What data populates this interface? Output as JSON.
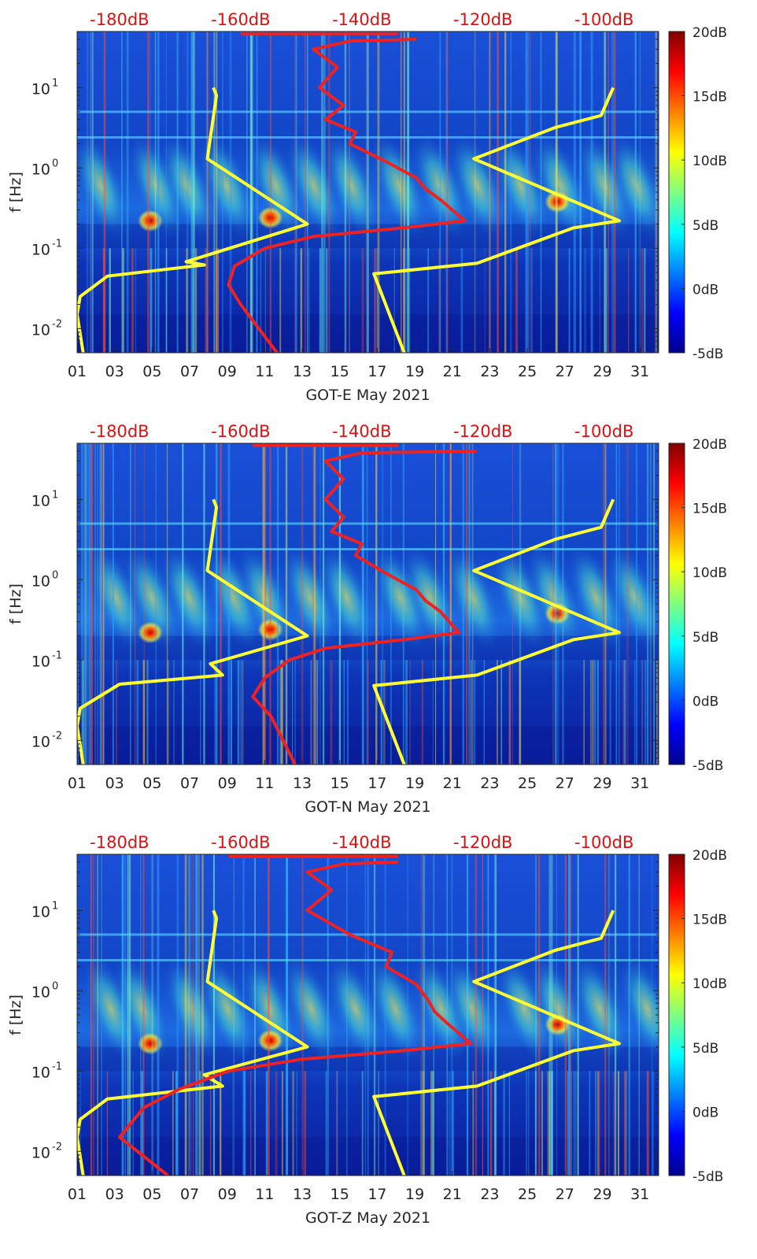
{
  "chart_data": [
    {
      "type": "heatmap",
      "title": "",
      "xlabel": "GOT-E May 2021",
      "ylabel": "f [Hz]",
      "x_ticks": [
        "01",
        "03",
        "05",
        "07",
        "09",
        "11",
        "13",
        "15",
        "17",
        "19",
        "21",
        "23",
        "25",
        "27",
        "29",
        "31"
      ],
      "x_range_days": [
        1,
        32
      ],
      "y_scale": "log",
      "y_ticks": [
        {
          "value": 0.01,
          "base": "10",
          "exp": "-2"
        },
        {
          "value": 0.1,
          "base": "10",
          "exp": "-1"
        },
        {
          "value": 1,
          "base": "10",
          "exp": "0"
        },
        {
          "value": 10,
          "base": "10",
          "exp": "1"
        }
      ],
      "y_range_hz": [
        0.005,
        50
      ],
      "top_axis_ticks": [
        "-180dB",
        "-160dB",
        "-140dB",
        "-120dB",
        "-100dB"
      ],
      "top_axis_range_db": [
        -187,
        -91
      ],
      "colorbar": {
        "ticks": [
          "20dB",
          "15dB",
          "10dB",
          "5dB",
          "0dB",
          "-5dB"
        ],
        "range_db": [
          -5,
          20
        ]
      },
      "series": [
        {
          "color": "#ffff33",
          "points": [
            [
              -164.5,
              10
            ],
            [
              -164,
              8
            ],
            [
              -165.5,
              1.3
            ],
            [
              -149,
              0.2
            ],
            [
              -169,
              0.068
            ],
            [
              -166,
              0.062
            ],
            [
              -182,
              0.045
            ],
            [
              -186.5,
              0.025
            ],
            [
              -187,
              0.015
            ],
            [
              -186,
              0.005
            ]
          ]
        },
        {
          "color": "#ffff33",
          "points": [
            [
              -98.5,
              10
            ],
            [
              -100.5,
              4.5
            ],
            [
              -108,
              3.2
            ],
            [
              -121.5,
              1.3
            ],
            [
              -97.5,
              0.22
            ],
            [
              -105,
              0.18
            ],
            [
              -121,
              0.065
            ],
            [
              -138,
              0.048
            ],
            [
              -133,
              0.005
            ]
          ]
        },
        {
          "color": "#ee2222",
          "points": [
            [
              -131,
              40
            ],
            [
              -142,
              38
            ],
            [
              -148,
              30
            ],
            [
              -144,
              18
            ],
            [
              -147,
              10
            ],
            [
              -143,
              6
            ],
            [
              -146,
              4
            ],
            [
              -141,
              2.8
            ],
            [
              -142,
              2.0
            ],
            [
              -136,
              1.2
            ],
            [
              -131,
              0.75
            ],
            [
              -129.5,
              0.55
            ],
            [
              -127,
              0.4
            ],
            [
              -123,
              0.22
            ],
            [
              -133,
              0.18
            ],
            [
              -148,
              0.14
            ],
            [
              -156,
              0.1
            ],
            [
              -161,
              0.06
            ],
            [
              -162,
              0.035
            ],
            [
              -160,
              0.02
            ],
            [
              -154,
              0.005
            ]
          ]
        },
        {
          "color": "#ee2222",
          "points": [
            [
              -134,
              47
            ],
            [
              -160,
              47
            ]
          ]
        }
      ]
    },
    {
      "type": "heatmap",
      "title": "",
      "xlabel": "GOT-N May 2021",
      "ylabel": "f [Hz]",
      "x_ticks": [
        "01",
        "03",
        "05",
        "07",
        "09",
        "11",
        "13",
        "15",
        "17",
        "19",
        "21",
        "23",
        "25",
        "27",
        "29",
        "31"
      ],
      "x_range_days": [
        1,
        32
      ],
      "y_scale": "log",
      "y_ticks": [
        {
          "value": 0.01,
          "base": "10",
          "exp": "-2"
        },
        {
          "value": 0.1,
          "base": "10",
          "exp": "-1"
        },
        {
          "value": 1,
          "base": "10",
          "exp": "0"
        },
        {
          "value": 10,
          "base": "10",
          "exp": "1"
        }
      ],
      "y_range_hz": [
        0.005,
        50
      ],
      "top_axis_ticks": [
        "-180dB",
        "-160dB",
        "-140dB",
        "-120dB",
        "-100dB"
      ],
      "top_axis_range_db": [
        -187,
        -91
      ],
      "colorbar": {
        "ticks": [
          "20dB",
          "15dB",
          "10dB",
          "5dB",
          "0dB",
          "-5dB"
        ],
        "range_db": [
          -5,
          20
        ]
      },
      "series": [
        {
          "color": "#ffff33",
          "points": [
            [
              -164.5,
              10
            ],
            [
              -164,
              8
            ],
            [
              -165.5,
              1.3
            ],
            [
              -149,
              0.2
            ],
            [
              -165,
              0.09
            ],
            [
              -163,
              0.065
            ],
            [
              -180,
              0.05
            ],
            [
              -186.5,
              0.025
            ],
            [
              -187,
              0.015
            ],
            [
              -186,
              0.005
            ]
          ]
        },
        {
          "color": "#ffff33",
          "points": [
            [
              -98.5,
              10
            ],
            [
              -100.5,
              4.5
            ],
            [
              -108,
              3.2
            ],
            [
              -121.5,
              1.3
            ],
            [
              -97.5,
              0.22
            ],
            [
              -105,
              0.18
            ],
            [
              -121,
              0.065
            ],
            [
              -138,
              0.048
            ],
            [
              -133,
              0.005
            ]
          ]
        },
        {
          "color": "#ee2222",
          "points": [
            [
              -121,
              40
            ],
            [
              -140,
              38
            ],
            [
              -146,
              30
            ],
            [
              -143,
              18
            ],
            [
              -146,
              10
            ],
            [
              -143,
              6
            ],
            [
              -145,
              4
            ],
            [
              -140,
              2.8
            ],
            [
              -141,
              2.0
            ],
            [
              -136,
              1.2
            ],
            [
              -131,
              0.75
            ],
            [
              -129.5,
              0.55
            ],
            [
              -127,
              0.4
            ],
            [
              -124,
              0.22
            ],
            [
              -133,
              0.18
            ],
            [
              -146,
              0.14
            ],
            [
              -152,
              0.1
            ],
            [
              -156,
              0.06
            ],
            [
              -158,
              0.035
            ],
            [
              -155,
              0.02
            ],
            [
              -151,
              0.005
            ]
          ]
        },
        {
          "color": "#ee2222",
          "points": [
            [
              -134,
              47
            ],
            [
              -158,
              47
            ]
          ]
        }
      ]
    },
    {
      "type": "heatmap",
      "title": "",
      "xlabel": "GOT-Z May 2021",
      "ylabel": "f [Hz]",
      "x_ticks": [
        "01",
        "03",
        "05",
        "07",
        "09",
        "11",
        "13",
        "15",
        "17",
        "19",
        "21",
        "23",
        "25",
        "27",
        "29",
        "31"
      ],
      "x_range_days": [
        1,
        32
      ],
      "y_scale": "log",
      "y_ticks": [
        {
          "value": 0.01,
          "base": "10",
          "exp": "-2"
        },
        {
          "value": 0.1,
          "base": "10",
          "exp": "-1"
        },
        {
          "value": 1,
          "base": "10",
          "exp": "0"
        },
        {
          "value": 10,
          "base": "10",
          "exp": "1"
        }
      ],
      "y_range_hz": [
        0.005,
        50
      ],
      "top_axis_ticks": [
        "-180dB",
        "-160dB",
        "-140dB",
        "-120dB",
        "-100dB"
      ],
      "top_axis_range_db": [
        -187,
        -91
      ],
      "colorbar": {
        "ticks": [
          "20dB",
          "15dB",
          "10dB",
          "5dB",
          "0dB",
          "-5dB"
        ],
        "range_db": [
          -5,
          20
        ]
      },
      "series": [
        {
          "color": "#ffff33",
          "points": [
            [
              -164.5,
              10
            ],
            [
              -164,
              8
            ],
            [
              -165.5,
              1.3
            ],
            [
              -149,
              0.2
            ],
            [
              -166,
              0.09
            ],
            [
              -163,
              0.065
            ],
            [
              -182,
              0.045
            ],
            [
              -186.5,
              0.025
            ],
            [
              -187,
              0.015
            ],
            [
              -186,
              0.005
            ]
          ]
        },
        {
          "color": "#ffff33",
          "points": [
            [
              -98.5,
              10
            ],
            [
              -100.5,
              4.5
            ],
            [
              -108,
              3.2
            ],
            [
              -121.5,
              1.3
            ],
            [
              -97.5,
              0.22
            ],
            [
              -105,
              0.18
            ],
            [
              -121,
              0.065
            ],
            [
              -138,
              0.048
            ],
            [
              -133,
              0.005
            ]
          ]
        },
        {
          "color": "#ee2222",
          "points": [
            [
              -134,
              40
            ],
            [
              -143,
              38
            ],
            [
              -149,
              30
            ],
            [
              -145,
              18
            ],
            [
              -149,
              10
            ],
            [
              -142,
              5
            ],
            [
              -135,
              3
            ],
            [
              -136,
              2.0
            ],
            [
              -131,
              1.2
            ],
            [
              -129,
              0.75
            ],
            [
              -128,
              0.55
            ],
            [
              -126,
              0.4
            ],
            [
              -122,
              0.22
            ],
            [
              -133,
              0.18
            ],
            [
              -150,
              0.14
            ],
            [
              -162,
              0.1
            ],
            [
              -170,
              0.06
            ],
            [
              -176,
              0.035
            ],
            [
              -180,
              0.015
            ],
            [
              -172,
              0.005
            ]
          ]
        },
        {
          "color": "#ee2222",
          "points": [
            [
              -134,
              47
            ],
            [
              -162,
              47
            ]
          ]
        }
      ]
    }
  ]
}
